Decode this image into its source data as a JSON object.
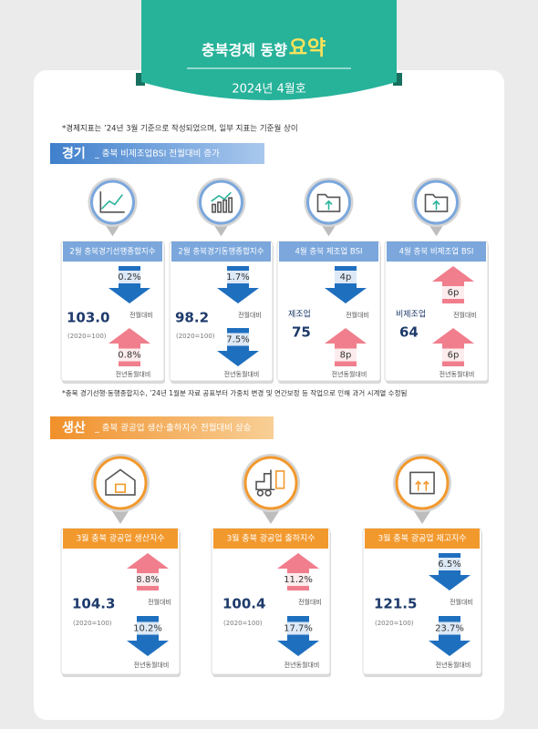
{
  "header": {
    "title": "충북경제 동향",
    "title_accent": "요약",
    "issue": "2024년 4월호"
  },
  "note": "*경제지표는 ’24년 3월 기준으로 작성되었으며, 일부 지표는 기준월 상이",
  "sections": [
    {
      "label": "경기",
      "summary": "_ 충북 비제조업BSI 전월대비 증가",
      "cards": [
        {
          "title": "2월 충북경기선행종합지수",
          "value": "103.0",
          "base": "(2020=100)",
          "changes": [
            {
              "value": "0.2%",
              "label": "전월대비"
            },
            {
              "value": "0.8%",
              "label": "전년동월대비"
            }
          ]
        },
        {
          "title": "2월 충북경기동행종합지수",
          "value": "98.2",
          "base": "(2020=100)",
          "changes": [
            {
              "value": "1.7%",
              "label": "전월대비"
            },
            {
              "value": "7.5%",
              "label": "전년동월대비"
            }
          ]
        },
        {
          "title": "4월 충북 제조업 BSI",
          "sub_label": "제조업",
          "value": "75",
          "changes": [
            {
              "value": "4p",
              "label": "전월대비"
            },
            {
              "value": "8p",
              "label": "전년동월대비"
            }
          ]
        },
        {
          "title": "4월 충북 비제조업 BSI",
          "sub_label": "비제조업",
          "value": "64",
          "changes": [
            {
              "value": "6p",
              "label": "전월대비"
            },
            {
              "value": "6p",
              "label": "전년동월대비"
            }
          ]
        }
      ],
      "footnote": "*충북 경기선행·동행종합지수, ’24년 1월분 자료 공표부터 가중치 변경 및 연간보정 등 작업으로 인해 과거 시계열 수정됨"
    },
    {
      "label": "생산",
      "summary": "_ 충북 광공업 생산·출하지수 전월대비 상승",
      "cards": [
        {
          "title": "3월 충북 광공업 생산지수",
          "value": "104.3",
          "base": "(2020=100)",
          "changes": [
            {
              "value": "8.8%",
              "label": "전월대비"
            },
            {
              "value": "10.2%",
              "label": "전년동월대비"
            }
          ]
        },
        {
          "title": "3월 충북 광공업 출하지수",
          "value": "100.4",
          "base": "(2020=100)",
          "changes": [
            {
              "value": "11.2%",
              "label": "전월대비"
            },
            {
              "value": "17.7%",
              "label": "전년동월대비"
            }
          ]
        },
        {
          "title": "3월 충북 광공업 재고지수",
          "value": "121.5",
          "base": "(2020=100)",
          "changes": [
            {
              "value": "6.5%",
              "label": "전월대비"
            },
            {
              "value": "23.7%",
              "label": "전년동월대비"
            }
          ]
        }
      ]
    }
  ]
}
